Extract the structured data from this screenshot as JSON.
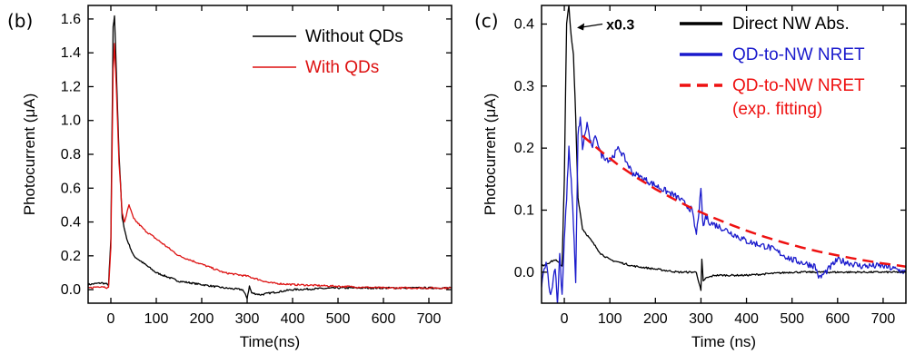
{
  "chart_data": [
    {
      "type": "line",
      "panel_label": "(b)",
      "xlabel": "Time(ns)",
      "ylabel": "Photocurrent (μA)",
      "xlim": [
        -50,
        750
      ],
      "ylim": [
        -0.08,
        1.68
      ],
      "xticks": [
        0,
        100,
        200,
        300,
        400,
        500,
        600,
        700
      ],
      "yticks": [
        0.0,
        0.2,
        0.4,
        0.6,
        0.8,
        1.0,
        1.2,
        1.4,
        1.6
      ],
      "xtick_labels": [
        "0",
        "100",
        "200",
        "300",
        "400",
        "500",
        "600",
        "700"
      ],
      "ytick_labels": [
        "0.0",
        "0.2",
        "0.4",
        "0.6",
        "0.8",
        "1.0",
        "1.2",
        "1.4",
        "1.6"
      ],
      "legend": "top-right",
      "grid": false,
      "series": [
        {
          "name": "Without QDs",
          "color": "#000000",
          "x": [
            -50,
            -20,
            -5,
            0,
            5,
            8,
            12,
            18,
            25,
            35,
            50,
            75,
            100,
            150,
            200,
            250,
            290,
            300,
            305,
            310,
            330,
            350,
            400,
            500,
            600,
            750
          ],
          "y": [
            0.03,
            0.04,
            0.03,
            0.3,
            1.55,
            1.62,
            1.3,
            0.8,
            0.42,
            0.3,
            0.2,
            0.15,
            0.1,
            0.05,
            0.03,
            0.01,
            0.0,
            -0.05,
            0.02,
            -0.02,
            -0.03,
            -0.02,
            0.0,
            0.01,
            0.01,
            0.01
          ]
        },
        {
          "name": "With QDs",
          "color": "#dd1111",
          "x": [
            -50,
            -20,
            -5,
            0,
            5,
            8,
            12,
            18,
            25,
            30,
            40,
            50,
            75,
            100,
            150,
            200,
            250,
            300,
            350,
            400,
            500,
            600,
            750
          ],
          "y": [
            0.01,
            0.02,
            0.01,
            0.25,
            1.3,
            1.45,
            1.2,
            0.75,
            0.45,
            0.4,
            0.5,
            0.42,
            0.35,
            0.3,
            0.2,
            0.15,
            0.1,
            0.08,
            0.04,
            0.03,
            0.02,
            0.01,
            0.01
          ]
        }
      ]
    },
    {
      "type": "line",
      "panel_label": "(c)",
      "xlabel": "Time (ns)",
      "ylabel": "Photocurrent (μA)",
      "xlim": [
        -50,
        750
      ],
      "ylim": [
        -0.05,
        0.43
      ],
      "xticks": [
        0,
        100,
        200,
        300,
        400,
        500,
        600,
        700
      ],
      "yticks": [
        0.0,
        0.1,
        0.2,
        0.3,
        0.4
      ],
      "xtick_labels": [
        "0",
        "100",
        "200",
        "300",
        "400",
        "500",
        "600",
        "700"
      ],
      "ytick_labels": [
        "0.0",
        "0.1",
        "0.2",
        "0.3",
        "0.4"
      ],
      "legend": "top-right",
      "grid": false,
      "annotations": [
        {
          "text": "x0.3",
          "x": 20,
          "y": 0.4
        }
      ],
      "series": [
        {
          "name": "Direct NW Abs.",
          "color": "#000000",
          "style": "solid",
          "x": [
            -50,
            -20,
            -5,
            0,
            5,
            10,
            15,
            20,
            25,
            30,
            40,
            60,
            80,
            100,
            150,
            200,
            250,
            290,
            300,
            302,
            305,
            310,
            330,
            400,
            500,
            600,
            750
          ],
          "y": [
            0.01,
            0.02,
            0.01,
            0.15,
            0.4,
            0.43,
            0.38,
            0.35,
            0.25,
            0.12,
            0.07,
            0.05,
            0.03,
            0.02,
            0.01,
            0.005,
            0.0,
            0.0,
            -0.03,
            0.02,
            -0.015,
            -0.01,
            -0.005,
            -0.005,
            0.0,
            0.0,
            0.0
          ]
        },
        {
          "name": "QD-to-NW NRET",
          "color": "#1a1acc",
          "style": "solid",
          "x": [
            -50,
            -40,
            -30,
            -20,
            -15,
            -10,
            -5,
            0,
            5,
            10,
            15,
            20,
            25,
            30,
            35,
            40,
            50,
            60,
            70,
            80,
            100,
            120,
            150,
            200,
            250,
            280,
            290,
            300,
            305,
            310,
            320,
            350,
            400,
            450,
            500,
            550,
            560,
            600,
            650,
            700,
            750
          ],
          "y": [
            -0.02,
            0.02,
            -0.04,
            0.01,
            -0.05,
            0.03,
            -0.04,
            0.05,
            0.12,
            0.2,
            0.15,
            0.08,
            -0.02,
            0.22,
            0.25,
            0.2,
            0.24,
            0.2,
            0.22,
            0.19,
            0.18,
            0.2,
            0.16,
            0.14,
            0.12,
            0.1,
            0.06,
            0.13,
            0.07,
            0.09,
            0.08,
            0.07,
            0.05,
            0.04,
            0.02,
            0.01,
            -0.01,
            0.02,
            0.01,
            0.01,
            0.0
          ]
        },
        {
          "name": "QD-to-NW NRET (exp. fitting)",
          "name_lines": [
            "QD-to-NW NRET",
            "(exp. fitting)"
          ],
          "color": "#ee1111",
          "style": "dashed",
          "x": [
            40,
            80,
            120,
            160,
            200,
            240,
            280,
            320,
            360,
            400,
            440,
            480,
            520,
            560,
            600,
            650,
            700,
            750
          ],
          "y": [
            0.22,
            0.195,
            0.172,
            0.152,
            0.134,
            0.118,
            0.103,
            0.09,
            0.078,
            0.067,
            0.057,
            0.048,
            0.04,
            0.033,
            0.027,
            0.02,
            0.014,
            0.009
          ]
        }
      ]
    }
  ]
}
